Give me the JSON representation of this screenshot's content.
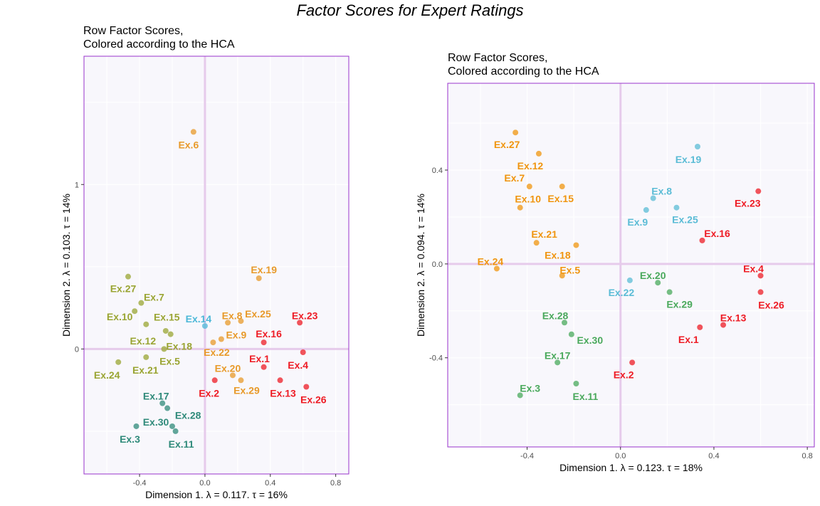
{
  "title": "Factor Scores for Expert Ratings",
  "colors": {
    "panel_bg": "#f8f7fc",
    "panel_border": "#9933cc",
    "grid": "#ffffff",
    "origin_line": "#e6cbeb"
  },
  "chart_data": [
    {
      "type": "scatter",
      "title": "Row Factor Scores,\nColored according to the HCA",
      "xlabel": "Dimension 1.   λ = 0.117.  τ = 16%",
      "ylabel": "Dimension 2.   λ = 0.103.  τ = 14%",
      "xlim": [
        -0.74,
        0.88
      ],
      "ylim": [
        -0.76,
        1.78
      ],
      "xticks": [
        -0.4,
        0.0,
        0.4,
        0.8
      ],
      "xtick_labels": [
        "-0.4",
        "0.0",
        "0.4",
        "0.8"
      ],
      "yticks": [
        0,
        1
      ],
      "ytick_labels": [
        "0",
        "1"
      ],
      "grid": true,
      "points": [
        {
          "label": "Ex.6",
          "x": -0.07,
          "y": 1.32,
          "color": "#e89a2a"
        },
        {
          "label": "Ex.19",
          "x": 0.33,
          "y": 0.43,
          "color": "#e89a2a"
        },
        {
          "label": "Ex.8",
          "x": 0.14,
          "y": 0.16,
          "color": "#e89a2a"
        },
        {
          "label": "Ex.25",
          "x": 0.22,
          "y": 0.17,
          "color": "#e89a2a"
        },
        {
          "label": "Ex.9",
          "x": 0.1,
          "y": 0.06,
          "color": "#e89a2a"
        },
        {
          "label": "Ex.22",
          "x": 0.05,
          "y": 0.04,
          "color": "#e89a2a"
        },
        {
          "label": "Ex.20",
          "x": 0.17,
          "y": -0.16,
          "color": "#e89a2a"
        },
        {
          "label": "Ex.29",
          "x": 0.22,
          "y": -0.19,
          "color": "#e89a2a"
        },
        {
          "label": "Ex.14",
          "x": 0.0,
          "y": 0.14,
          "color": "#4cb8d8"
        },
        {
          "label": "Ex.23",
          "x": 0.58,
          "y": 0.16,
          "color": "#ee1c25"
        },
        {
          "label": "Ex.16",
          "x": 0.36,
          "y": 0.04,
          "color": "#ee1c25"
        },
        {
          "label": "Ex.1",
          "x": 0.36,
          "y": -0.11,
          "color": "#ee1c25"
        },
        {
          "label": "Ex.4",
          "x": 0.6,
          "y": -0.02,
          "color": "#ee1c25"
        },
        {
          "label": "Ex.13",
          "x": 0.46,
          "y": -0.19,
          "color": "#ee1c25"
        },
        {
          "label": "Ex.26",
          "x": 0.62,
          "y": -0.23,
          "color": "#ee1c25"
        },
        {
          "label": "Ex.2",
          "x": 0.06,
          "y": -0.19,
          "color": "#ee1c25"
        },
        {
          "label": "Ex.27",
          "x": -0.47,
          "y": 0.44,
          "color": "#9aa533"
        },
        {
          "label": "Ex.7",
          "x": -0.39,
          "y": 0.28,
          "color": "#9aa533"
        },
        {
          "label": "Ex.10",
          "x": -0.43,
          "y": 0.23,
          "color": "#9aa533"
        },
        {
          "label": "Ex.15",
          "x": -0.36,
          "y": 0.15,
          "color": "#9aa533"
        },
        {
          "label": "Ex.12",
          "x": -0.24,
          "y": 0.11,
          "color": "#9aa533"
        },
        {
          "label": "Ex.18",
          "x": -0.21,
          "y": 0.09,
          "color": "#9aa533"
        },
        {
          "label": "Ex.5",
          "x": -0.25,
          "y": 0.0,
          "color": "#9aa533"
        },
        {
          "label": "Ex.21",
          "x": -0.36,
          "y": -0.05,
          "color": "#9aa533"
        },
        {
          "label": "Ex.24",
          "x": -0.53,
          "y": -0.08,
          "color": "#9aa533"
        },
        {
          "label": "Ex.17",
          "x": -0.26,
          "y": -0.33,
          "color": "#2f8a7a"
        },
        {
          "label": "Ex.28",
          "x": -0.23,
          "y": -0.36,
          "color": "#2f8a7a"
        },
        {
          "label": "Ex.30",
          "x": -0.2,
          "y": -0.47,
          "color": "#2f8a7a"
        },
        {
          "label": "Ex.11",
          "x": -0.18,
          "y": -0.5,
          "color": "#2f8a7a"
        },
        {
          "label": "Ex.3",
          "x": -0.42,
          "y": -0.47,
          "color": "#2f8a7a"
        }
      ]
    },
    {
      "type": "scatter",
      "title": "Row Factor Scores,\nColored according to the HCA",
      "xlabel": "Dimension 1.   λ = 0.123.  τ = 18%",
      "ylabel": "Dimension 2.   λ = 0.094.  τ = 14%",
      "xlim": [
        -0.74,
        0.83
      ],
      "ylim": [
        -0.78,
        0.77
      ],
      "xticks": [
        -0.4,
        0.0,
        0.4,
        0.8
      ],
      "xtick_labels": [
        "-0.4",
        "0.0",
        "0.4",
        "0.8"
      ],
      "yticks": [
        -0.4,
        0.0,
        0.4
      ],
      "ytick_labels": [
        "-0.4",
        "0.0",
        "0.4"
      ],
      "grid": true,
      "points": [
        {
          "label": "Ex.27",
          "x": -0.45,
          "y": 0.56,
          "color": "#f0950f"
        },
        {
          "label": "Ex.12",
          "x": -0.35,
          "y": 0.47,
          "color": "#f0950f"
        },
        {
          "label": "Ex.7",
          "x": -0.39,
          "y": 0.33,
          "color": "#f0950f"
        },
        {
          "label": "Ex.15",
          "x": -0.25,
          "y": 0.33,
          "color": "#f0950f"
        },
        {
          "label": "Ex.10",
          "x": -0.43,
          "y": 0.24,
          "color": "#f0950f"
        },
        {
          "label": "Ex.21",
          "x": -0.36,
          "y": 0.09,
          "color": "#f0950f"
        },
        {
          "label": "Ex.18",
          "x": -0.19,
          "y": 0.08,
          "color": "#f0950f"
        },
        {
          "label": "Ex.24",
          "x": -0.53,
          "y": -0.02,
          "color": "#f0950f"
        },
        {
          "label": "Ex.5",
          "x": -0.25,
          "y": -0.05,
          "color": "#f0950f"
        },
        {
          "label": "Ex.19",
          "x": 0.33,
          "y": 0.5,
          "color": "#5bbcd6"
        },
        {
          "label": "Ex.8",
          "x": 0.14,
          "y": 0.28,
          "color": "#5bbcd6"
        },
        {
          "label": "Ex.9",
          "x": 0.11,
          "y": 0.23,
          "color": "#5bbcd6"
        },
        {
          "label": "Ex.25",
          "x": 0.24,
          "y": 0.24,
          "color": "#5bbcd6"
        },
        {
          "label": "Ex.22",
          "x": 0.04,
          "y": -0.07,
          "color": "#5bbcd6"
        },
        {
          "label": "Ex.23",
          "x": 0.59,
          "y": 0.31,
          "color": "#ee1c25"
        },
        {
          "label": "Ex.16",
          "x": 0.35,
          "y": 0.1,
          "color": "#ee1c25"
        },
        {
          "label": "Ex.4",
          "x": 0.6,
          "y": -0.05,
          "color": "#ee1c25"
        },
        {
          "label": "Ex.26",
          "x": 0.6,
          "y": -0.12,
          "color": "#ee1c25"
        },
        {
          "label": "Ex.13",
          "x": 0.44,
          "y": -0.26,
          "color": "#ee1c25"
        },
        {
          "label": "Ex.1",
          "x": 0.34,
          "y": -0.27,
          "color": "#ee1c25"
        },
        {
          "label": "Ex.2",
          "x": 0.05,
          "y": -0.42,
          "color": "#ee1c25"
        },
        {
          "label": "Ex.20",
          "x": 0.16,
          "y": -0.08,
          "color": "#4aa95c"
        },
        {
          "label": "Ex.29",
          "x": 0.21,
          "y": -0.12,
          "color": "#4aa95c"
        },
        {
          "label": "Ex.28",
          "x": -0.24,
          "y": -0.25,
          "color": "#4aa95c"
        },
        {
          "label": "Ex.30",
          "x": -0.21,
          "y": -0.3,
          "color": "#4aa95c"
        },
        {
          "label": "Ex.17",
          "x": -0.27,
          "y": -0.42,
          "color": "#4aa95c"
        },
        {
          "label": "Ex.11",
          "x": -0.19,
          "y": -0.51,
          "color": "#4aa95c"
        },
        {
          "label": "Ex.3",
          "x": -0.43,
          "y": -0.56,
          "color": "#4aa95c"
        }
      ]
    }
  ]
}
